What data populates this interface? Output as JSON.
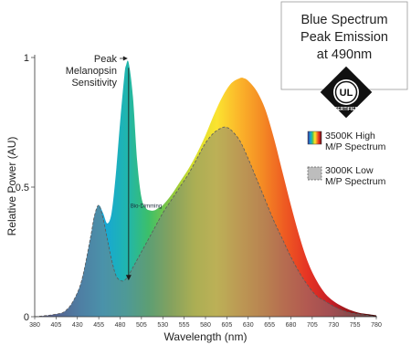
{
  "chart_data": {
    "type": "area",
    "xlabel": "Wavelength (nm)",
    "ylabel": "Relative Power (AU)",
    "xlim": [
      380,
      780
    ],
    "ylim": [
      0,
      1
    ],
    "x_ticks": [
      380,
      405,
      430,
      455,
      480,
      505,
      530,
      555,
      580,
      605,
      630,
      655,
      680,
      705,
      730,
      755,
      780
    ],
    "y_ticks": [
      {
        "value": 0,
        "label": "0"
      },
      {
        "value": 0.5,
        "label": "0.5"
      },
      {
        "value": 1,
        "label": "1"
      }
    ],
    "grid": false,
    "series": [
      {
        "name": "3500K High M/P Spectrum",
        "x": [
          380,
          395,
          405,
          415,
          425,
          435,
          445,
          450,
          455,
          460,
          465,
          470,
          475,
          480,
          485,
          487,
          490,
          495,
          500,
          505,
          510,
          515,
          520,
          525,
          530,
          540,
          550,
          560,
          570,
          580,
          590,
          600,
          610,
          620,
          625,
          630,
          640,
          650,
          660,
          670,
          680,
          690,
          700,
          710,
          720,
          730,
          740,
          750,
          760,
          770,
          780
        ],
        "values": [
          0,
          0.005,
          0.01,
          0.02,
          0.06,
          0.14,
          0.3,
          0.39,
          0.43,
          0.4,
          0.36,
          0.4,
          0.55,
          0.75,
          0.93,
          0.97,
          0.98,
          0.85,
          0.6,
          0.46,
          0.42,
          0.41,
          0.41,
          0.42,
          0.43,
          0.47,
          0.52,
          0.57,
          0.63,
          0.7,
          0.78,
          0.85,
          0.9,
          0.92,
          0.92,
          0.91,
          0.87,
          0.8,
          0.69,
          0.56,
          0.43,
          0.31,
          0.21,
          0.14,
          0.09,
          0.06,
          0.04,
          0.025,
          0.015,
          0.01,
          0.005
        ]
      },
      {
        "name": "3000K Low M/P Spectrum",
        "x": [
          380,
          395,
          405,
          415,
          425,
          435,
          445,
          450,
          455,
          460,
          465,
          470,
          475,
          480,
          485,
          490,
          495,
          500,
          510,
          520,
          530,
          540,
          550,
          560,
          570,
          580,
          590,
          600,
          605,
          610,
          620,
          630,
          640,
          650,
          660,
          670,
          680,
          690,
          700,
          710,
          720,
          730,
          740,
          750,
          760,
          770,
          780
        ],
        "values": [
          0,
          0.005,
          0.01,
          0.02,
          0.06,
          0.14,
          0.3,
          0.39,
          0.43,
          0.38,
          0.3,
          0.22,
          0.16,
          0.14,
          0.14,
          0.16,
          0.19,
          0.22,
          0.28,
          0.34,
          0.4,
          0.45,
          0.5,
          0.55,
          0.61,
          0.67,
          0.71,
          0.73,
          0.73,
          0.72,
          0.68,
          0.61,
          0.53,
          0.45,
          0.37,
          0.3,
          0.23,
          0.17,
          0.12,
          0.08,
          0.06,
          0.04,
          0.025,
          0.015,
          0.01,
          0.005,
          0
        ]
      }
    ],
    "annotations": {
      "peak_label": "Peak Melanopsin Sensitivity",
      "peak_x": 490,
      "bio_dimming_label": "Bio-Dimming"
    },
    "callout": {
      "line1": "Blue Spectrum",
      "line2": "Peak Emission",
      "line3": "at 490nm"
    },
    "ul_mark": {
      "letters": "UL",
      "ring_text": "CERTIFIED",
      "registered": "®"
    },
    "legend": {
      "placement": "right",
      "high_line1": "3500K High",
      "high_line2": "M/P Spectrum",
      "low_line1": "3000K Low",
      "low_line2": "M/P Spectrum"
    },
    "colors": {
      "spectrum_stops": [
        "#3b2a7a",
        "#2d4fa8",
        "#1f7fc9",
        "#17a6d6",
        "#1fb5b0",
        "#3cbf6a",
        "#8cc63f",
        "#d8df2a",
        "#fbe330",
        "#fbb42a",
        "#f48a24",
        "#ee5a22",
        "#e53324",
        "#c61f26",
        "#8a1416",
        "#3a0a0a"
      ],
      "low_overlay": "#7d7d7d"
    }
  }
}
